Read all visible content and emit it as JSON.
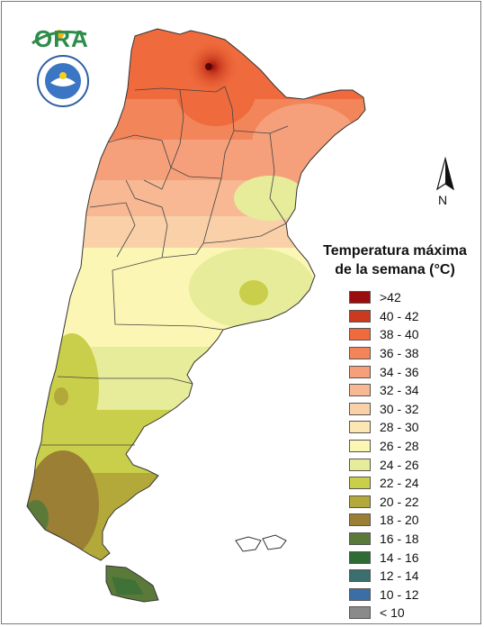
{
  "logo": {
    "text": "ORA"
  },
  "seal": {
    "icon": "smn-seal-icon"
  },
  "north": {
    "label": "N",
    "icon": "north-arrow-icon"
  },
  "legend": {
    "title_line1": "Temperatura máxima",
    "title_line2": "de la semana (°C)",
    "items": [
      {
        "label": ">42",
        "color": "#9b0d0d"
      },
      {
        "label": "40 - 42",
        "color": "#c93a1f"
      },
      {
        "label": "38 - 40",
        "color": "#ef6a3c"
      },
      {
        "label": "36 - 38",
        "color": "#f2855a"
      },
      {
        "label": "34 - 36",
        "color": "#f5a07a"
      },
      {
        "label": "32 - 34",
        "color": "#f7b893"
      },
      {
        "label": "30 - 32",
        "color": "#fad0a9"
      },
      {
        "label": "28 - 30",
        "color": "#fce6b1"
      },
      {
        "label": "26 - 28",
        "color": "#fbf6b3"
      },
      {
        "label": "24 - 26",
        "color": "#e6ec9a"
      },
      {
        "label": "22 - 24",
        "color": "#c9cf4a"
      },
      {
        "label": "20 - 22",
        "color": "#b3a83a"
      },
      {
        "label": "18 - 20",
        "color": "#9a7f35"
      },
      {
        "label": "16 - 18",
        "color": "#5b7a3a"
      },
      {
        "label": "14 - 16",
        "color": "#2f6b35"
      },
      {
        "label": "12 - 14",
        "color": "#3a6f6e"
      },
      {
        "label": "10 - 12",
        "color": "#3b6ea5"
      },
      {
        "label": "< 10",
        "color": "#8a8a8a"
      }
    ]
  }
}
